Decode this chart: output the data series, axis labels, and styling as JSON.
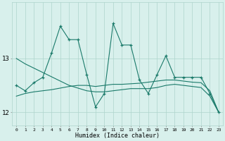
{
  "xlabel": "Humidex (Indice chaleur)",
  "x": [
    0,
    1,
    2,
    3,
    4,
    5,
    6,
    7,
    8,
    9,
    10,
    11,
    12,
    13,
    14,
    15,
    16,
    17,
    18,
    19,
    20,
    21,
    22,
    23
  ],
  "line_jagged": [
    12.5,
    12.4,
    12.55,
    12.65,
    13.1,
    13.6,
    13.35,
    13.35,
    12.7,
    12.1,
    12.35,
    13.65,
    13.25,
    13.25,
    12.6,
    12.35,
    12.7,
    13.05,
    12.65,
    12.65,
    12.65,
    12.65,
    12.35,
    12.0
  ],
  "line_diagonal": [
    13.0,
    12.9,
    12.82,
    12.74,
    12.66,
    12.58,
    12.5,
    12.45,
    12.4,
    12.38,
    12.38,
    12.4,
    12.42,
    12.44,
    12.44,
    12.44,
    12.46,
    12.5,
    12.52,
    12.5,
    12.48,
    12.46,
    12.3,
    12.0
  ],
  "line_flat": [
    12.3,
    12.35,
    12.38,
    12.4,
    12.42,
    12.45,
    12.48,
    12.5,
    12.5,
    12.48,
    12.5,
    12.52,
    12.52,
    12.53,
    12.54,
    12.56,
    12.58,
    12.6,
    12.6,
    12.58,
    12.56,
    12.55,
    12.4,
    12.0
  ],
  "color": "#1a7a6a",
  "bg_color": "#d8f0ec",
  "grid_color": "#aed4cc",
  "ylim": [
    11.75,
    14.05
  ],
  "yticks": [
    12,
    13
  ],
  "xticks": [
    0,
    1,
    2,
    3,
    4,
    5,
    6,
    7,
    8,
    9,
    10,
    11,
    12,
    13,
    14,
    15,
    16,
    17,
    18,
    19,
    20,
    21,
    22,
    23
  ],
  "figsize": [
    3.2,
    2.0
  ],
  "dpi": 100
}
